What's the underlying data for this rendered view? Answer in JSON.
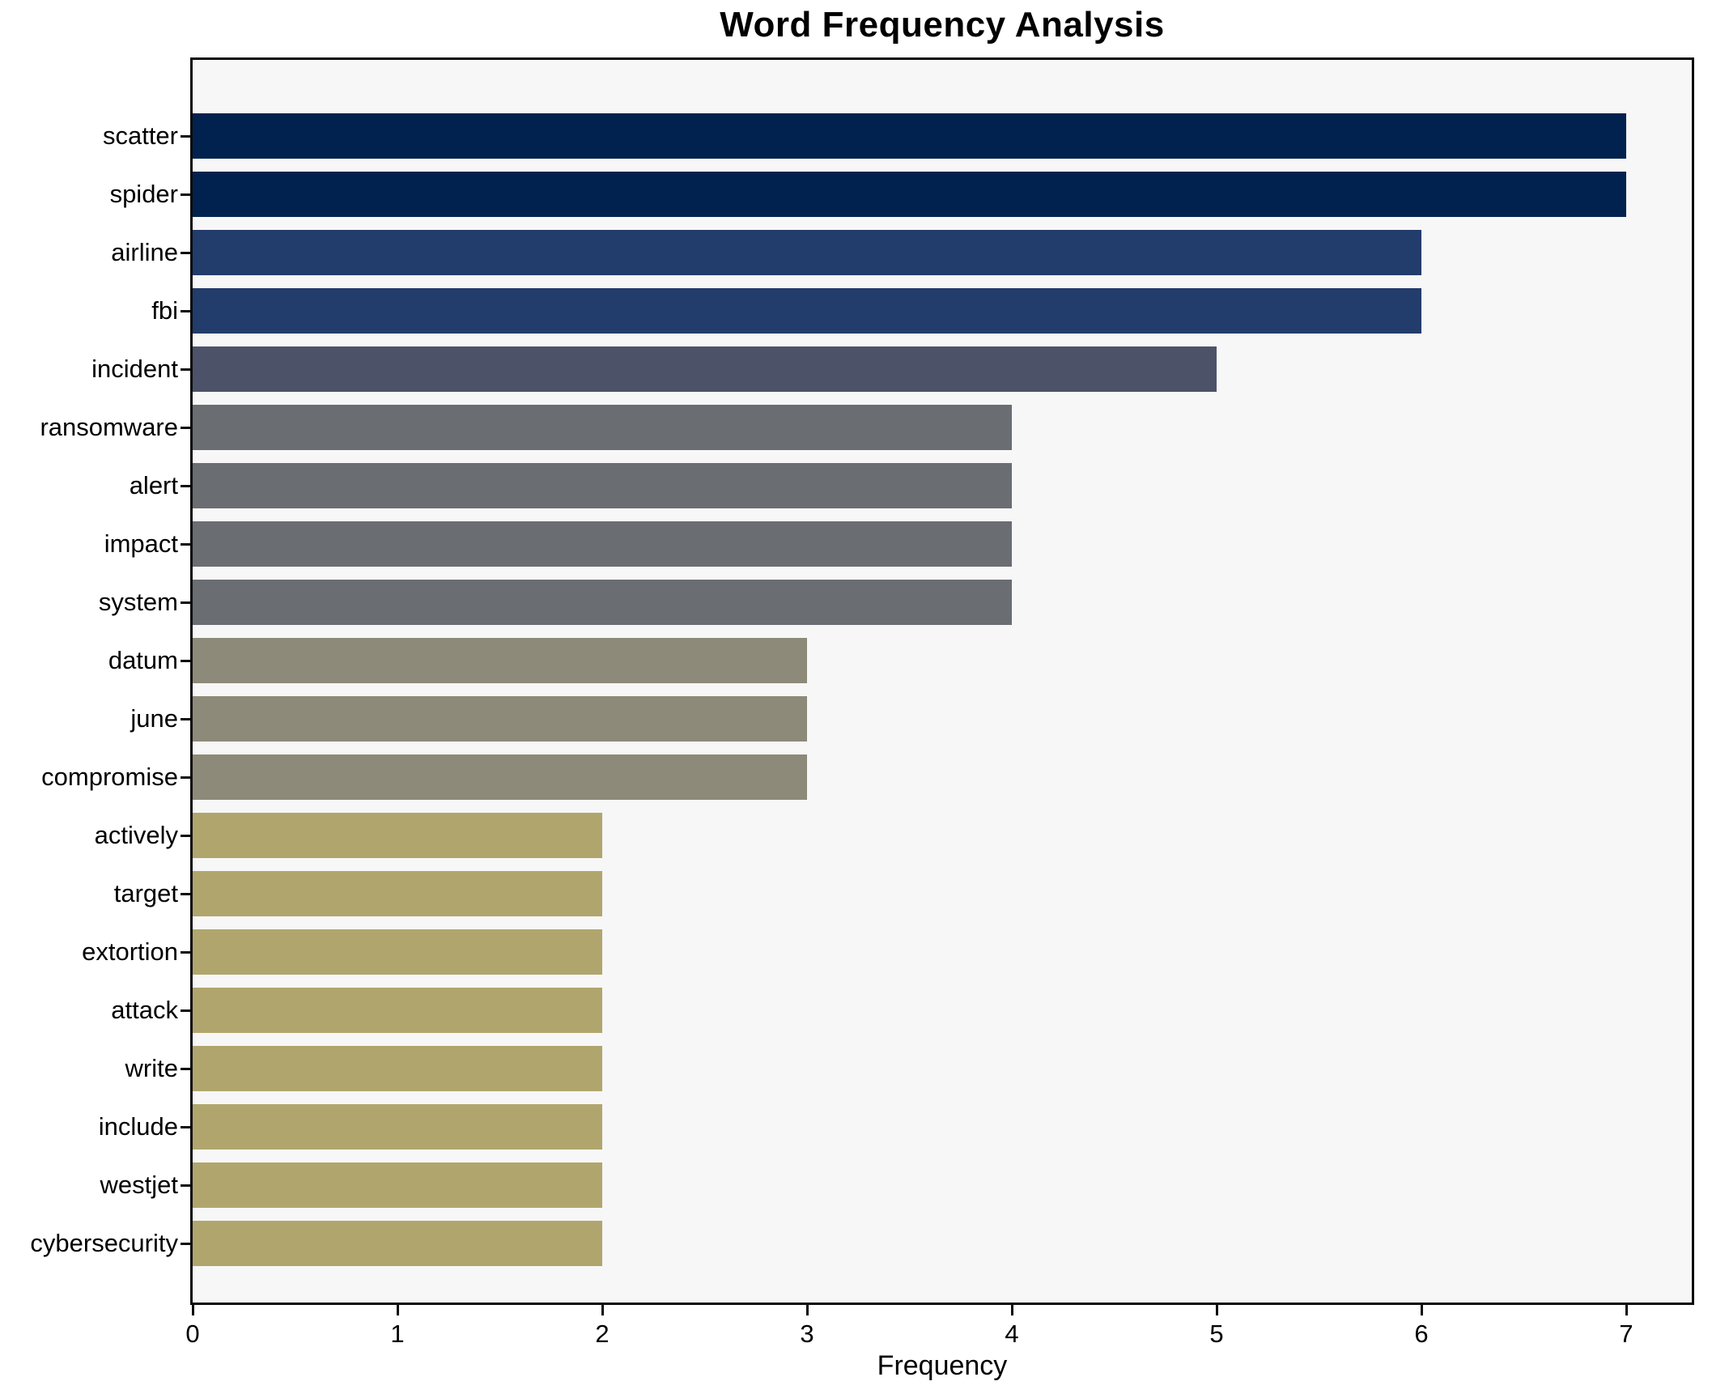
{
  "chart_data": {
    "type": "bar",
    "orientation": "horizontal",
    "title": "Word Frequency Analysis",
    "xlabel": "Frequency",
    "ylabel": "",
    "categories": [
      "scatter",
      "spider",
      "airline",
      "fbi",
      "incident",
      "ransomware",
      "alert",
      "impact",
      "system",
      "datum",
      "june",
      "compromise",
      "actively",
      "target",
      "extortion",
      "attack",
      "write",
      "include",
      "westjet",
      "cybersecurity"
    ],
    "values": [
      7,
      7,
      6,
      6,
      5,
      4,
      4,
      4,
      4,
      3,
      3,
      3,
      2,
      2,
      2,
      2,
      2,
      2,
      2,
      2
    ],
    "x_ticks": [
      "0",
      "1",
      "2",
      "3",
      "4",
      "5",
      "6",
      "7"
    ],
    "xlim": [
      0,
      7.32
    ],
    "grid": false,
    "legend_position": "none",
    "colors_by_value": {
      "7": "#01224e",
      "6": "#223c6b",
      "5": "#4c5268",
      "4": "#6a6d71",
      "3": "#8e8a79",
      "2": "#b0a66d"
    },
    "plot_bg": "#f7f7f7",
    "figure_bg": "#ffffff",
    "spine_color": "#0a0a0a"
  }
}
